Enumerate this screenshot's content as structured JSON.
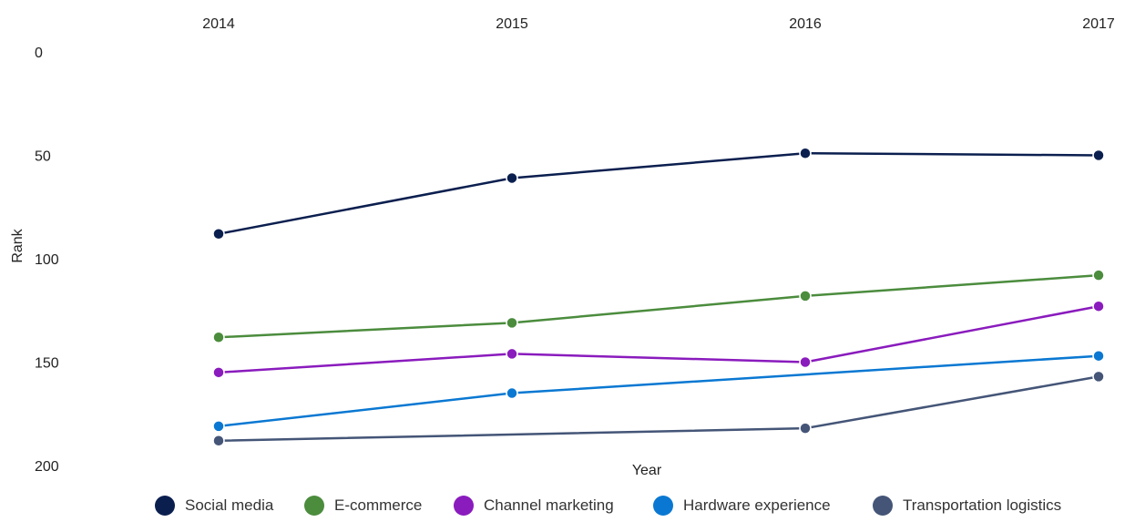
{
  "chart_data": {
    "type": "line",
    "xlabel": "Year",
    "ylabel": "Rank",
    "x": [
      "2014",
      "2015",
      "2016",
      "2017"
    ],
    "y_ticks": [
      "0",
      "50",
      "100",
      "150",
      "200"
    ],
    "ylim": [
      0,
      200
    ],
    "y_inverted": true,
    "x_axis_position": "top",
    "grid": false,
    "legend_position": "bottom",
    "series": [
      {
        "name": "Social media",
        "color": "#0b1f4f",
        "values": [
          88,
          61,
          49,
          50
        ]
      },
      {
        "name": "E-commerce",
        "color": "#4b8c3d",
        "values": [
          138,
          131,
          118,
          108
        ]
      },
      {
        "name": "Channel marketing",
        "color": "#8a1bbd",
        "values": [
          155,
          146,
          150,
          123
        ]
      },
      {
        "name": "Hardware experience",
        "color": "#0a78d2",
        "values": [
          181,
          165,
          null,
          147
        ]
      },
      {
        "name": "Transportation logistics",
        "color": "#445577",
        "values": [
          188,
          null,
          182,
          157
        ]
      }
    ]
  }
}
